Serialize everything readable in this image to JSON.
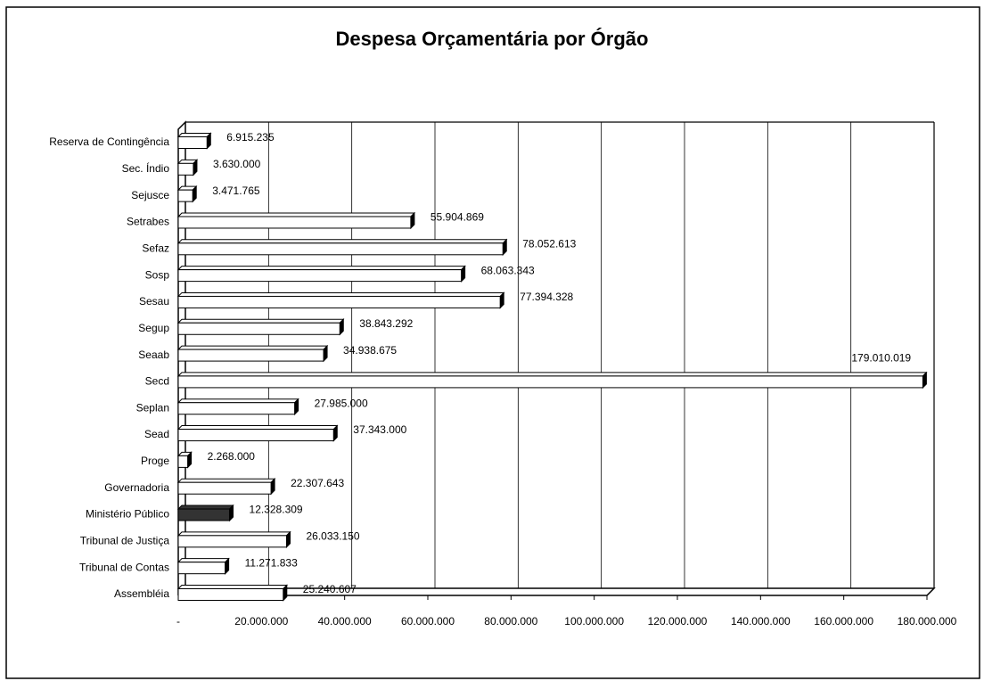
{
  "chart_data": {
    "type": "bar",
    "orientation": "horizontal",
    "title": "Despesa Orçamentária por Órgão",
    "categories": [
      "Reserva de Contingência",
      "Sec. Índio",
      "Sejusce",
      "Setrabes",
      "Sefaz",
      "Sosp",
      "Sesau",
      "Segup",
      "Seaab",
      "Secd",
      "Seplan",
      "Sead",
      "Proge",
      "Governadoria",
      "Ministério Público",
      "Tribunal de Justiça",
      "Tribunal de Contas",
      "Assembléia"
    ],
    "values": [
      6915235,
      3630000,
      3471765,
      55904869,
      78052613,
      68063343,
      77394328,
      38843292,
      34938675,
      179010019,
      27985000,
      37343000,
      2268000,
      22307643,
      12328309,
      26033150,
      11271833,
      25240607
    ],
    "value_labels": [
      "6.915.235",
      "3.630.000",
      "3.471.765",
      "55.904.869",
      "78.052.613",
      "68.063.343",
      "77.394.328",
      "38.843.292",
      "34.938.675",
      "179.010.019",
      "27.985.000",
      "37.343.000",
      "2.268.000",
      "22.307.643",
      "12.328.309",
      "26.033.150",
      "11.271.833",
      "25.240.607"
    ],
    "colors": [
      "#ffffff",
      "#ffffff",
      "#ffffff",
      "#ffffff",
      "#ffffff",
      "#ffffff",
      "#ffffff",
      "#ffffff",
      "#ffffff",
      "#ffffff",
      "#ffffff",
      "#ffffff",
      "#ffffff",
      "#ffffff",
      "#333333",
      "#ffffff",
      "#ffffff",
      "#ffffff"
    ],
    "xlim": [
      0,
      180000000
    ],
    "xticks": [
      {
        "value": 0,
        "label": "-"
      },
      {
        "value": 20000000,
        "label": "20.000.000"
      },
      {
        "value": 40000000,
        "label": "40.000.000"
      },
      {
        "value": 60000000,
        "label": "60.000.000"
      },
      {
        "value": 80000000,
        "label": "80.000.000"
      },
      {
        "value": 100000000,
        "label": "100.000.000"
      },
      {
        "value": 120000000,
        "label": "120.000.000"
      },
      {
        "value": 140000000,
        "label": "140.000.000"
      },
      {
        "value": 160000000,
        "label": "160.000.000"
      },
      {
        "value": 180000000,
        "label": "180.000.000"
      }
    ],
    "grid": true
  }
}
